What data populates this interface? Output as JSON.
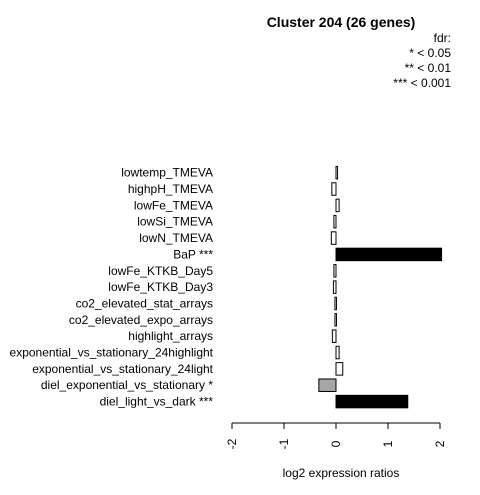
{
  "chart_data": {
    "type": "bar",
    "orientation": "horizontal",
    "title": "Cluster 204 (26 genes)",
    "xlabel": "log2 expression ratios",
    "ylabel": "",
    "xlim": [
      -2,
      2
    ],
    "xticks": [
      "-2",
      "-1",
      "0",
      "1",
      "2"
    ],
    "legend": {
      "title": "fdr:",
      "entries": [
        "* < 0.05",
        "** < 0.01",
        "*** < 0.001"
      ]
    },
    "categories": [
      "lowtemp_TMEVA",
      "highpH_TMEVA",
      "lowFe_TMEVA",
      "lowSi_TMEVA",
      "lowN_TMEVA",
      "BaP ***",
      "lowFe_KTKB_Day5",
      "lowFe_KTKB_Day3",
      "co2_elevated_stat_arrays",
      "co2_elevated_expo_arrays",
      "highlight_arrays",
      "exponential_vs_stationary_24highlight",
      "exponential_vs_stationary_24light",
      "diel_exponential_vs_stationary *",
      "diel_light_vs_dark ***"
    ],
    "values": [
      0.03,
      -0.08,
      0.06,
      -0.04,
      -0.09,
      2.03,
      -0.04,
      -0.05,
      -0.02,
      -0.02,
      -0.07,
      0.06,
      0.13,
      -0.33,
      1.38
    ],
    "fills": [
      "#ffffff",
      "#ffffff",
      "#ffffff",
      "#ffffff",
      "#ffffff",
      "#000000",
      "#ffffff",
      "#ffffff",
      "#ffffff",
      "#ffffff",
      "#ffffff",
      "#ffffff",
      "#ffffff",
      "#a6a6a6",
      "#000000"
    ]
  }
}
